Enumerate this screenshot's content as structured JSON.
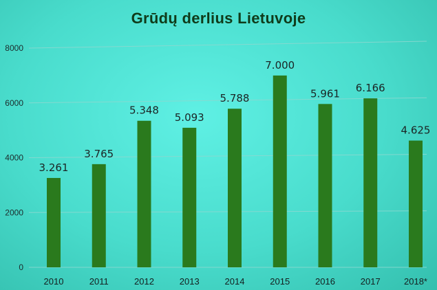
{
  "chart_data": {
    "type": "bar",
    "title": "Grūdų derlius Lietuvoje",
    "categories": [
      "2010",
      "2011",
      "2012",
      "2013",
      "2014",
      "2015",
      "2016",
      "2017",
      "2018*"
    ],
    "values": [
      3261,
      3765,
      5348,
      5093,
      5788,
      7000,
      5961,
      6166,
      4625
    ],
    "data_labels": [
      "3.261",
      "3.765",
      "5.348",
      "5.093",
      "5.788",
      "7.000",
      "5.961",
      "6.166",
      "4.625"
    ],
    "yticks": [
      "0",
      "2000",
      "4000",
      "6000",
      "8000"
    ],
    "ylim": [
      0,
      8000
    ],
    "grid": true,
    "bar_color": "#2a7a1d",
    "xlabel": "",
    "ylabel": ""
  }
}
